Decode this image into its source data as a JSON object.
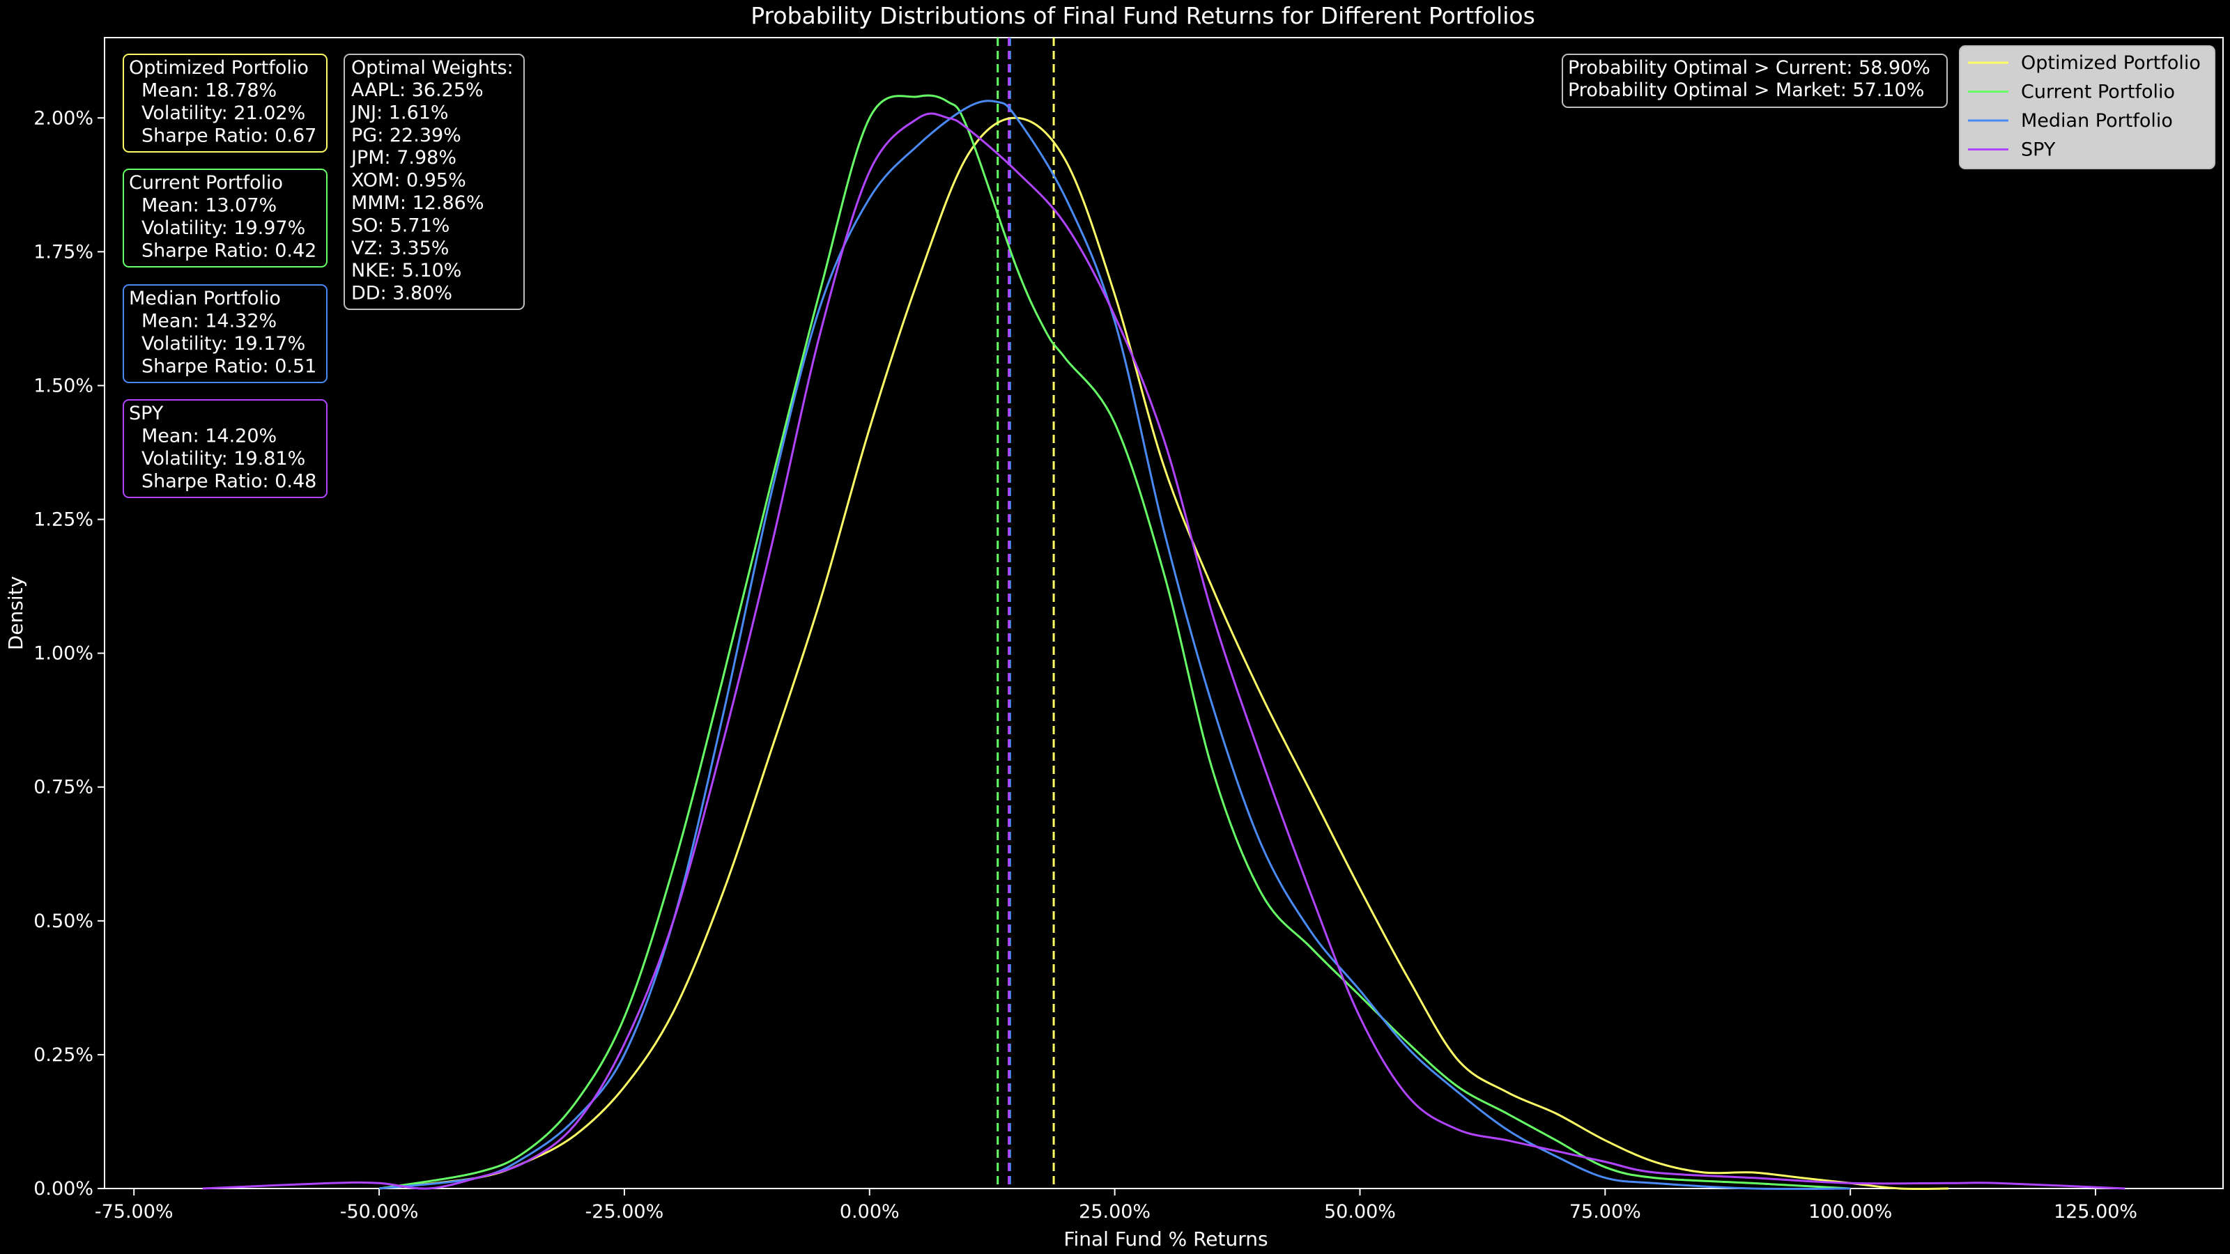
{
  "chart_data": {
    "type": "line",
    "title": "Probability Distributions of Final Fund Returns for Different Portfolios",
    "xlabel": "Final Fund % Returns",
    "ylabel": "Density",
    "xlim": [
      -78,
      138
    ],
    "ylim": [
      0,
      2.15
    ],
    "x_ticks": [
      -75,
      -50,
      -25,
      0,
      25,
      50,
      75,
      100,
      125
    ],
    "x_tick_labels": [
      "-75.00%",
      "-50.00%",
      "-25.00%",
      "0.00%",
      "25.00%",
      "50.00%",
      "75.00%",
      "100.00%",
      "125.00%"
    ],
    "y_ticks": [
      0,
      0.25,
      0.5,
      0.75,
      1.0,
      1.25,
      1.5,
      1.75,
      2.0
    ],
    "y_tick_labels": [
      "0.00%",
      "0.25%",
      "0.50%",
      "0.75%",
      "1.00%",
      "1.25%",
      "1.50%",
      "1.75%",
      "2.00%"
    ],
    "grid": false,
    "legend_position": "top-right",
    "series": [
      {
        "name": "Optimized Portfolio",
        "color": "#ffff66",
        "mean_line": 18.78,
        "x": [
          -50,
          -40,
          -35,
          -30,
          -25,
          -20,
          -15,
          -10,
          -5,
          0,
          5,
          10,
          15,
          20,
          25,
          30,
          35,
          40,
          45,
          50,
          55,
          60,
          65,
          70,
          75,
          80,
          85,
          90,
          95,
          100,
          105,
          110
        ],
        "y": [
          0.0,
          0.02,
          0.05,
          0.1,
          0.19,
          0.33,
          0.55,
          0.82,
          1.1,
          1.42,
          1.7,
          1.93,
          2.0,
          1.92,
          1.67,
          1.35,
          1.12,
          0.92,
          0.74,
          0.56,
          0.39,
          0.24,
          0.18,
          0.14,
          0.09,
          0.05,
          0.03,
          0.03,
          0.02,
          0.01,
          0.0,
          0.0
        ]
      },
      {
        "name": "Current Portfolio",
        "color": "#66ff66",
        "mean_line": 13.07,
        "x": [
          -50,
          -40,
          -35,
          -30,
          -25,
          -20,
          -15,
          -10,
          -5,
          0,
          5,
          8,
          10,
          15,
          18,
          20,
          25,
          30,
          35,
          40,
          45,
          50,
          55,
          60,
          65,
          70,
          75,
          80,
          90,
          100
        ],
        "y": [
          0.0,
          0.03,
          0.07,
          0.16,
          0.32,
          0.6,
          0.95,
          1.32,
          1.68,
          2.0,
          2.04,
          2.03,
          1.98,
          1.72,
          1.6,
          1.55,
          1.43,
          1.15,
          0.78,
          0.55,
          0.45,
          0.36,
          0.27,
          0.19,
          0.14,
          0.09,
          0.04,
          0.02,
          0.01,
          0.0
        ]
      },
      {
        "name": "Median Portfolio",
        "color": "#4a8af4",
        "mean_line": 14.32,
        "x": [
          -50,
          -40,
          -35,
          -30,
          -25,
          -20,
          -15,
          -10,
          -5,
          0,
          5,
          10,
          13,
          15,
          20,
          25,
          30,
          35,
          40,
          45,
          50,
          55,
          60,
          65,
          70,
          75,
          80,
          90,
          100
        ],
        "y": [
          0.0,
          0.02,
          0.06,
          0.13,
          0.25,
          0.5,
          0.88,
          1.3,
          1.65,
          1.85,
          1.95,
          2.02,
          2.03,
          2.0,
          1.85,
          1.62,
          1.23,
          0.9,
          0.64,
          0.48,
          0.37,
          0.26,
          0.18,
          0.11,
          0.06,
          0.02,
          0.01,
          0.0,
          0.0
        ]
      },
      {
        "name": "SPY",
        "color": "#b044ff",
        "mean_line": 14.2,
        "x": [
          -68,
          -55,
          -50,
          -45,
          -40,
          -35,
          -30,
          -25,
          -20,
          -15,
          -10,
          -5,
          0,
          5,
          8,
          10,
          15,
          20,
          25,
          30,
          35,
          40,
          45,
          50,
          55,
          60,
          65,
          70,
          75,
          80,
          90,
          100,
          110,
          115,
          128
        ],
        "y": [
          0.0,
          0.01,
          0.01,
          0.0,
          0.02,
          0.05,
          0.12,
          0.27,
          0.5,
          0.83,
          1.2,
          1.6,
          1.9,
          2.0,
          2.0,
          1.98,
          1.9,
          1.8,
          1.63,
          1.4,
          1.07,
          0.8,
          0.55,
          0.32,
          0.17,
          0.11,
          0.09,
          0.07,
          0.05,
          0.03,
          0.02,
          0.01,
          0.01,
          0.01,
          0.0
        ]
      }
    ],
    "stat_boxes": [
      {
        "title": "Optimized Portfolio",
        "mean": "Mean: 18.78%",
        "volatility": "Volatility: 21.02%",
        "sharpe": "Sharpe Ratio: 0.67",
        "color": "#ffff66"
      },
      {
        "title": "Current Portfolio",
        "mean": "Mean: 13.07%",
        "volatility": "Volatility: 19.97%",
        "sharpe": "Sharpe Ratio: 0.42",
        "color": "#66ff66"
      },
      {
        "title": "Median Portfolio",
        "mean": "Mean: 14.32%",
        "volatility": "Volatility: 19.17%",
        "sharpe": "Sharpe Ratio: 0.51",
        "color": "#4a8af4"
      },
      {
        "title": "SPY",
        "mean": "Mean: 14.20%",
        "volatility": "Volatility: 19.81%",
        "sharpe": "Sharpe Ratio: 0.48",
        "color": "#b044ff"
      }
    ],
    "weights_box": {
      "title": "Optimal Weights:",
      "lines": [
        "AAPL: 36.25%",
        "JNJ: 1.61%",
        "PG: 22.39%",
        "JPM: 7.98%",
        "XOM: 0.95%",
        "MMM: 12.86%",
        "SO: 5.71%",
        "VZ: 3.35%",
        "NKE: 5.10%",
        "DD: 3.80%"
      ]
    },
    "probability_box": {
      "lines": [
        "Probability Optimal > Current: 58.90%",
        "Probability Optimal > Market: 57.10%"
      ]
    }
  }
}
